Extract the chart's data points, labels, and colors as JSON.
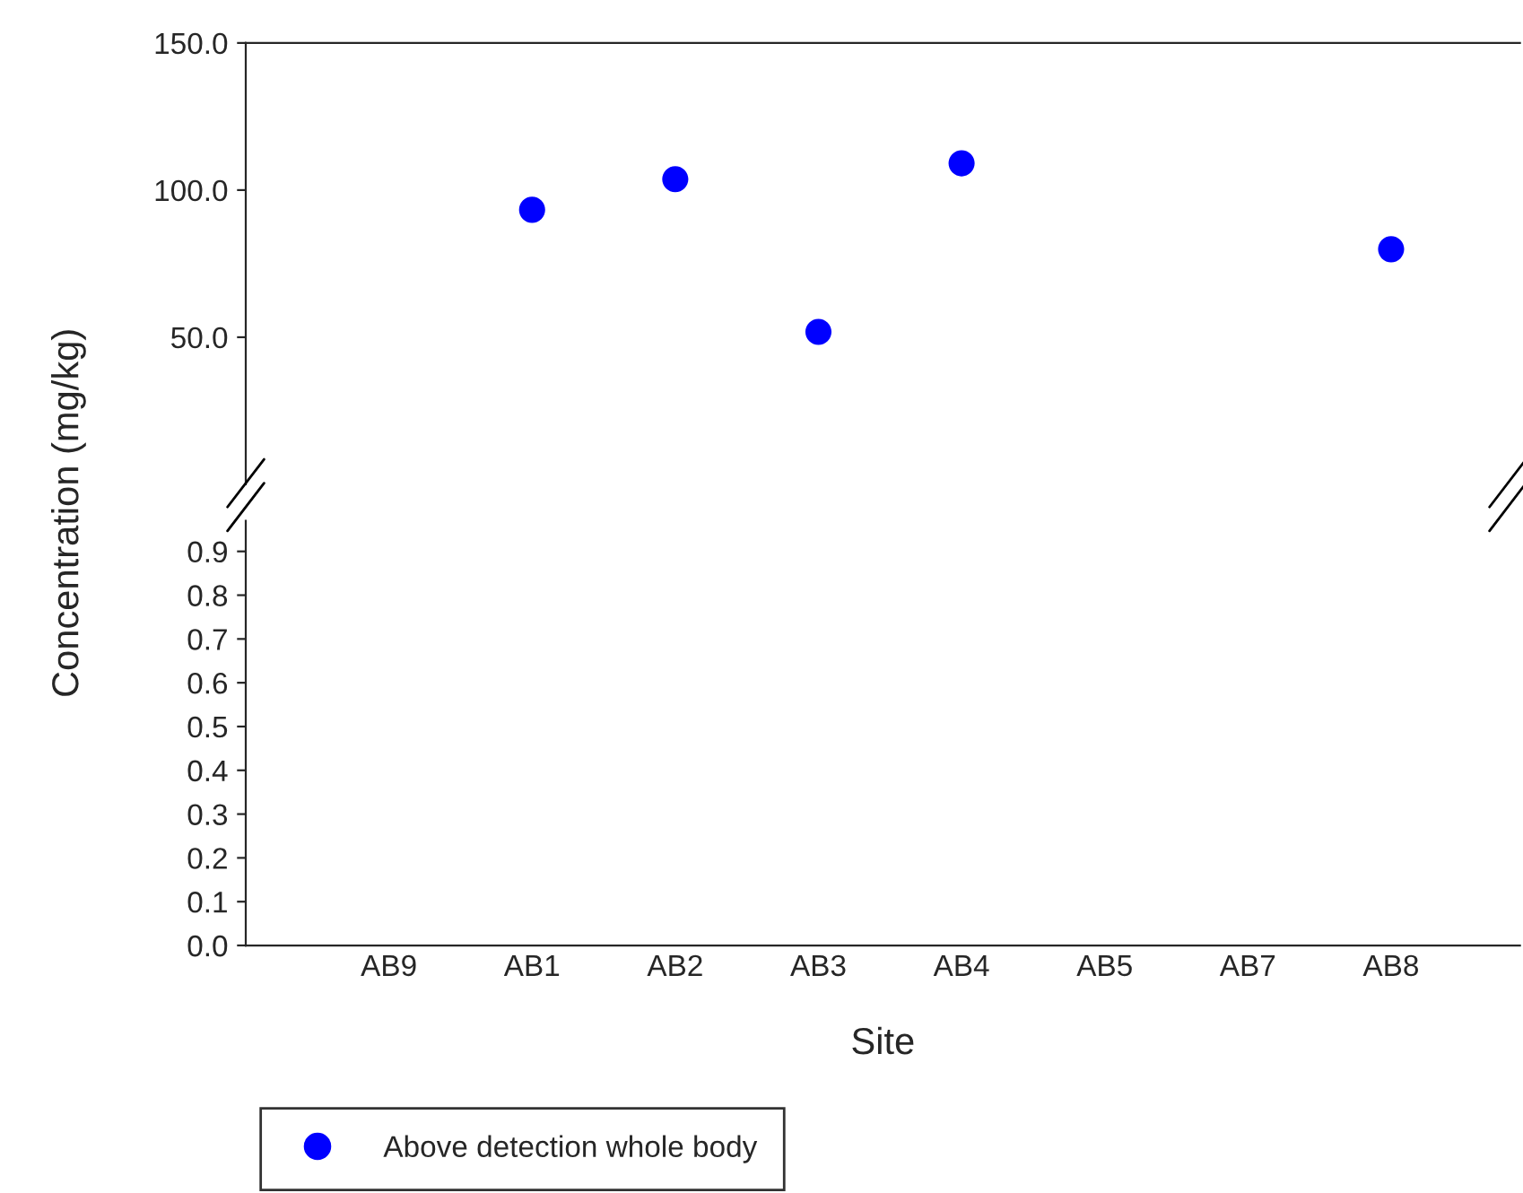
{
  "chart_data": [
    {
      "type": "scatter",
      "ylabel": "Concentration (mg/kg)",
      "series": [
        {
          "name": "Above detection whole body",
          "color": "#0000ff",
          "values": [
            null,
            93.3,
            103.7,
            51.8,
            109.1,
            null,
            null,
            79.9
          ]
        }
      ],
      "ylim": [
        0,
        150
      ],
      "yticks": [
        {
          "value": 50,
          "label": "50.0"
        },
        {
          "value": 100,
          "label": "100.0"
        },
        {
          "value": 150,
          "label": "150.0"
        }
      ],
      "tick_labels": "y",
      "legend": "bottom",
      "marker": "circle",
      "grid": false
    },
    {
      "type": "scatter",
      "xlabel": "Site",
      "categories": [
        "AB9",
        "AB1",
        "AB2",
        "AB3",
        "AB4",
        "AB5",
        "AB7",
        "AB8"
      ],
      "ylim": [
        0,
        0.97
      ],
      "yticks": [
        {
          "value": 0,
          "label": "0.0"
        },
        {
          "value": 0.1,
          "label": "0.1"
        },
        {
          "value": 0.2,
          "label": "0.2"
        },
        {
          "value": 0.3,
          "label": "0.3"
        },
        {
          "value": 0.4,
          "label": "0.4"
        },
        {
          "value": 0.5,
          "label": "0.5"
        },
        {
          "value": 0.6,
          "label": "0.6"
        },
        {
          "value": 0.7,
          "label": "0.7"
        },
        {
          "value": 0.8,
          "label": "0.8"
        },
        {
          "value": 0.9,
          "label": "0.9"
        }
      ],
      "grid": false
    }
  ]
}
